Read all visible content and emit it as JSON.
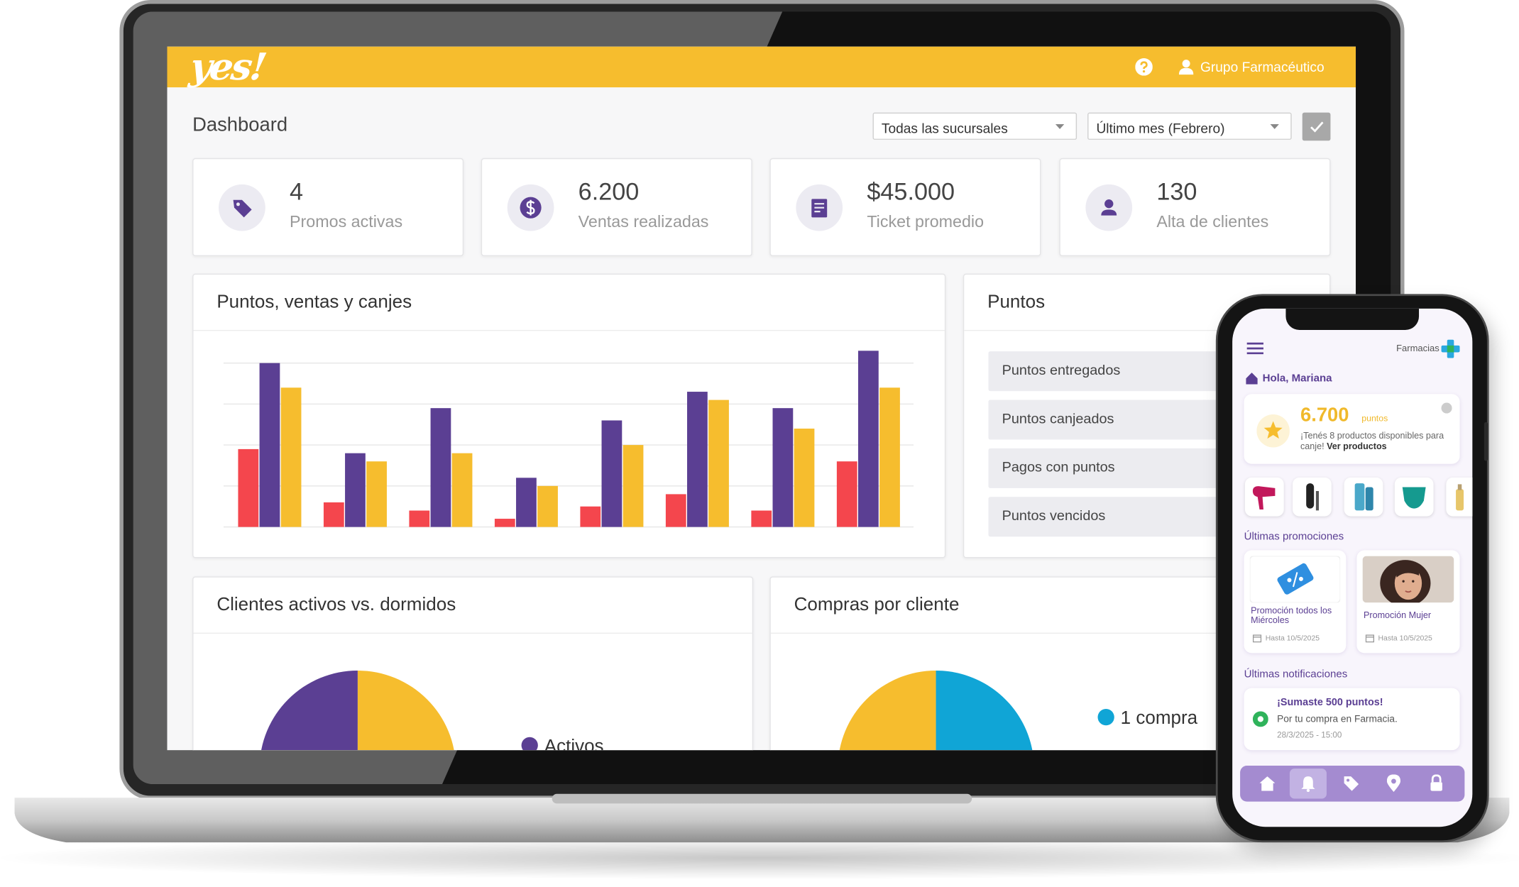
{
  "header": {
    "brand": "yes!",
    "user": "Grupo Farmacéutico"
  },
  "dashboard": {
    "title": "Dashboard",
    "filters": [
      "Todas las sucursales",
      "Último mes (Febrero)"
    ],
    "kpis": [
      {
        "value": "4",
        "label": "Promos activas"
      },
      {
        "value": "6.200",
        "label": "Ventas realizadas"
      },
      {
        "value": "$45.000",
        "label": "Ticket promedio"
      },
      {
        "value": "130",
        "label": "Alta de clientes"
      }
    ],
    "points_title": "Puntos",
    "points_items": [
      "Puntos entregados",
      "Puntos canjeados",
      "Pagos con puntos",
      "Puntos vencidos"
    ]
  },
  "chart_data": [
    {
      "type": "bar",
      "title": "Puntos, ventas y canjes",
      "series": [
        {
          "color": "#f4464d",
          "values": [
            1.9,
            0.6,
            0.4,
            0.2,
            0.5,
            0.8,
            0.4,
            1.6
          ]
        },
        {
          "color": "#5b3f93",
          "values": [
            4.0,
            1.8,
            2.9,
            1.2,
            2.6,
            3.3,
            2.9,
            4.3
          ]
        },
        {
          "color": "#f6bd2e",
          "values": [
            3.4,
            1.6,
            1.8,
            1.0,
            2.0,
            3.1,
            2.4,
            3.4
          ]
        }
      ],
      "ylim": [
        0,
        4.5
      ],
      "yticks": [
        0,
        1,
        2,
        3,
        4
      ],
      "grid": true
    },
    {
      "type": "pie",
      "title": "Clientes activos vs. dormidos",
      "categories": [
        null,
        "Activos"
      ],
      "values": [
        50,
        50
      ],
      "colors": [
        "#f6bd2e",
        "#5b3f93"
      ]
    },
    {
      "type": "pie",
      "title": "Compras por cliente",
      "categories": [
        "1 compra",
        null,
        null
      ],
      "values": [
        33,
        17,
        50
      ],
      "colors": [
        "#10a5d6",
        "#22a322",
        "#f6bd2e"
      ]
    }
  ],
  "phone": {
    "brand_label": "Farmacias",
    "greeting": "Hola, Mariana",
    "points_value": "6.700",
    "points_unit": "puntos",
    "points_message": "¡Tenés 8 productos disponibles para canje!",
    "points_link": "Ver productos",
    "promotions_title": "Últimas promociones",
    "promotions": [
      {
        "title": "Promoción todos los Miércoles",
        "until": "Hasta 10/5/2025"
      },
      {
        "title": "Promoción Mujer",
        "until": "Hasta 10/5/2025"
      }
    ],
    "notifications_title": "Últimas notificaciones",
    "notifications": [
      {
        "title": "¡Sumaste 500 puntos!",
        "text": "Por tu compra en Farmacia.",
        "date": "28/3/2025 - 15:00"
      }
    ]
  }
}
